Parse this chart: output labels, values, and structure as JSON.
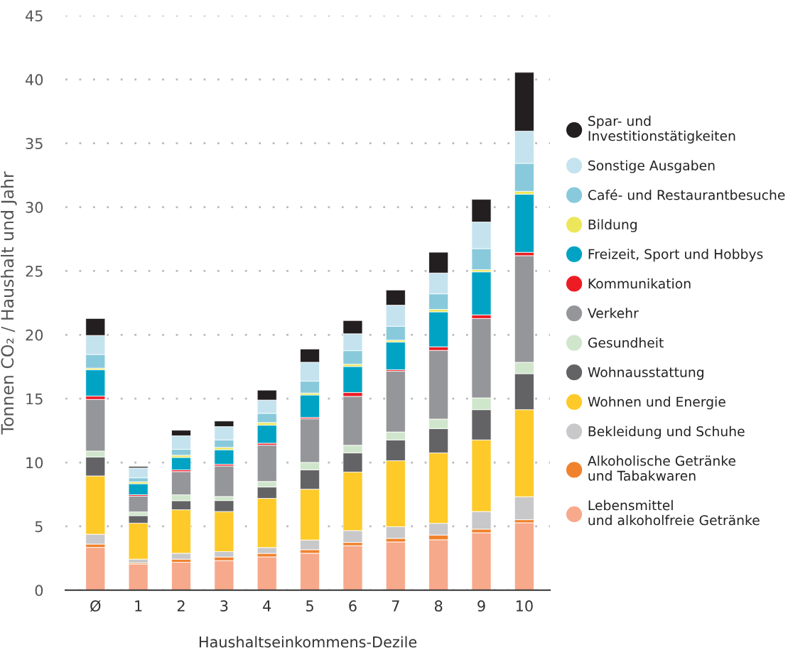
{
  "chart_data": {
    "type": "bar",
    "stacked": true,
    "xlabel": "Haushaltseinkommens-Dezile",
    "ylabel": "Tonnen CO₂ / Haushalt und Jahr",
    "categories": [
      "Ø",
      "1",
      "2",
      "3",
      "4",
      "5",
      "6",
      "7",
      "8",
      "9",
      "10"
    ],
    "ylim": [
      0,
      45
    ],
    "yticks": [
      0,
      5,
      10,
      15,
      20,
      25,
      30,
      35,
      40,
      45
    ],
    "grid": "y",
    "legend": "right",
    "marker": "circle",
    "series": [
      {
        "name": "Lebensmittel\nund alkoholfreie Getränke",
        "color": "#f7a98b",
        "values": [
          3.35,
          2.04,
          2.19,
          2.32,
          2.61,
          2.89,
          3.49,
          3.78,
          3.95,
          4.5,
          5.28
        ]
      },
      {
        "name": "Alkoholische Getränke\nund Tabakwaren",
        "color": "#f0822d",
        "values": [
          0.26,
          0.09,
          0.24,
          0.28,
          0.27,
          0.28,
          0.25,
          0.28,
          0.37,
          0.28,
          0.24
        ]
      },
      {
        "name": "Bekleidung und Schuhe",
        "color": "#c8c8ca",
        "values": [
          0.77,
          0.3,
          0.46,
          0.42,
          0.46,
          0.76,
          0.93,
          0.91,
          0.92,
          1.38,
          1.8
        ]
      },
      {
        "name": "Wohnen und Energie",
        "color": "#fdca29",
        "values": [
          4.57,
          2.82,
          3.41,
          3.14,
          3.85,
          3.98,
          4.58,
          5.17,
          5.51,
          5.61,
          6.82
        ]
      },
      {
        "name": "Wohnausstattung",
        "color": "#636365",
        "values": [
          1.49,
          0.59,
          0.71,
          0.86,
          0.89,
          1.51,
          1.5,
          1.63,
          1.91,
          2.37,
          2.82
        ]
      },
      {
        "name": "Gesundheit",
        "color": "#d0e6cc",
        "values": [
          0.46,
          0.29,
          0.46,
          0.32,
          0.43,
          0.59,
          0.6,
          0.62,
          0.74,
          0.92,
          0.89
        ]
      },
      {
        "name": "Verkehr",
        "color": "#959699",
        "values": [
          4.04,
          1.23,
          1.82,
          2.39,
          2.85,
          3.41,
          3.83,
          4.76,
          5.38,
          6.22,
          8.35
        ]
      },
      {
        "name": "Kommunikation",
        "color": "#ed1c24",
        "values": [
          0.26,
          0.11,
          0.13,
          0.13,
          0.15,
          0.11,
          0.3,
          0.11,
          0.28,
          0.28,
          0.26
        ]
      },
      {
        "name": "Freizeit, Sport und Hobbys",
        "color": "#00a3c4",
        "values": [
          2.06,
          0.87,
          0.98,
          1.14,
          1.41,
          1.76,
          2.04,
          2.17,
          2.74,
          3.37,
          4.55
        ]
      },
      {
        "name": "Bildung",
        "color": "#ede65a",
        "values": [
          0.13,
          0.15,
          0.17,
          0.18,
          0.21,
          0.15,
          0.18,
          0.15,
          0.19,
          0.17,
          0.23
        ]
      },
      {
        "name": "Café- und Restaurantbesuche",
        "color": "#89c9dc",
        "values": [
          1.07,
          0.31,
          0.46,
          0.59,
          0.72,
          0.93,
          1.06,
          1.09,
          1.22,
          1.65,
          2.19
        ]
      },
      {
        "name": "Sonstige Ausgaben",
        "color": "#c4e3ee",
        "values": [
          1.49,
          0.77,
          1.06,
          1.04,
          1.04,
          1.48,
          1.32,
          1.65,
          1.63,
          2.08,
          2.52
        ]
      },
      {
        "name": "Spar- und\nInvestitionstätigkeiten",
        "color": "#231f20",
        "values": [
          1.33,
          0.12,
          0.44,
          0.44,
          0.78,
          1.04,
          1.04,
          1.19,
          1.63,
          1.78,
          4.61
        ]
      }
    ]
  }
}
